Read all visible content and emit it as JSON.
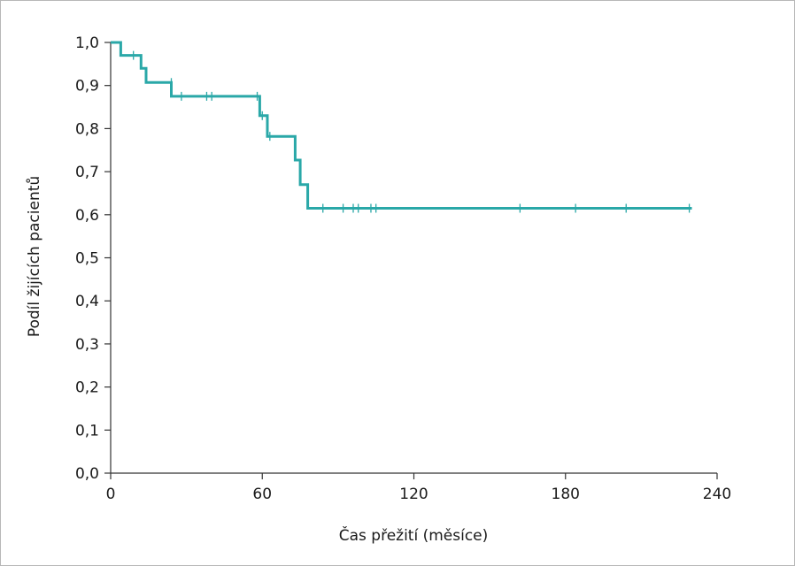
{
  "chart_data": {
    "type": "line",
    "title": "",
    "xlabel": "Čas přežití (měsíce)",
    "ylabel": "Podíl žijících pacientů",
    "xlim": [
      0,
      240
    ],
    "ylim": [
      0,
      1
    ],
    "x_ticks": [
      "0",
      "60",
      "120",
      "180",
      "240"
    ],
    "x_tick_values": [
      0,
      60,
      120,
      180,
      240
    ],
    "y_ticks": [
      "0,0",
      "0,1",
      "0,2",
      "0,3",
      "0,4",
      "0,5",
      "0,6",
      "0,7",
      "0,8",
      "0,9",
      "1,0"
    ],
    "y_tick_values": [
      0,
      0.1,
      0.2,
      0.3,
      0.4,
      0.5,
      0.6,
      0.7,
      0.8,
      0.9,
      1.0
    ],
    "grid": false,
    "legend": "none",
    "line_color": "#2aa8a8",
    "series": [
      {
        "step_points": [
          [
            0,
            1.0
          ],
          [
            4,
            1.0
          ],
          [
            4,
            0.97
          ],
          [
            12,
            0.97
          ],
          [
            12,
            0.94
          ],
          [
            14,
            0.94
          ],
          [
            14,
            0.907
          ],
          [
            24,
            0.907
          ],
          [
            24,
            0.875
          ],
          [
            59,
            0.875
          ],
          [
            59,
            0.83
          ],
          [
            62,
            0.83
          ],
          [
            62,
            0.782
          ],
          [
            73,
            0.782
          ],
          [
            73,
            0.727
          ],
          [
            75,
            0.727
          ],
          [
            75,
            0.67
          ],
          [
            78,
            0.67
          ],
          [
            78,
            0.615
          ],
          [
            230,
            0.615
          ]
        ],
        "censored": [
          [
            9,
            0.97
          ],
          [
            24,
            0.907
          ],
          [
            28,
            0.875
          ],
          [
            38,
            0.875
          ],
          [
            40,
            0.875
          ],
          [
            58,
            0.875
          ],
          [
            60,
            0.83
          ],
          [
            63,
            0.782
          ],
          [
            84,
            0.615
          ],
          [
            92,
            0.615
          ],
          [
            96,
            0.615
          ],
          [
            98,
            0.615
          ],
          [
            103,
            0.615
          ],
          [
            105,
            0.615
          ],
          [
            162,
            0.615
          ],
          [
            184,
            0.615
          ],
          [
            204,
            0.615
          ],
          [
            229,
            0.615
          ]
        ]
      }
    ]
  }
}
